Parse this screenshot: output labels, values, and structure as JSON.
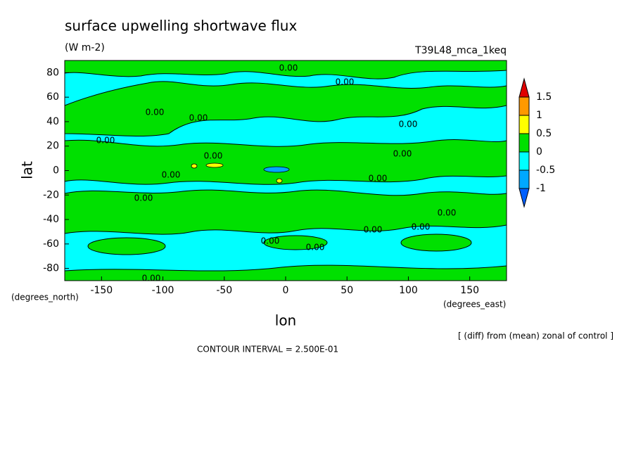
{
  "chart_data": {
    "type": "contour",
    "title": "surface upwelling shortwave flux",
    "units": "(W m-2)",
    "dataset": "T39L48_mca_1keq",
    "xlabel": "lon",
    "ylabel": "lat",
    "xunits": "(degrees_east)",
    "yunits": "(degrees_north)",
    "xlim": [
      -180,
      180
    ],
    "ylim": [
      -90,
      90
    ],
    "xticks": [
      -150,
      -100,
      -50,
      0,
      50,
      100,
      150
    ],
    "yticks": [
      -80,
      -60,
      -40,
      -20,
      0,
      20,
      40,
      60,
      80
    ],
    "levels": [
      -1,
      -0.5,
      0,
      0.5,
      1,
      1.5
    ],
    "level_colors": [
      "#0060ff",
      "#00a8ff",
      "#00ffff",
      "#00e000",
      "#ffff00",
      "#ff9900",
      "#e00000"
    ],
    "contour_labels": [
      {
        "value": 0,
        "label": "0.00"
      },
      {
        "value": 0,
        "label": "0.00"
      },
      {
        "value": 0,
        "label": "0.00"
      },
      {
        "value": 0,
        "label": "0.00"
      },
      {
        "value": 0,
        "label": "0.00"
      },
      {
        "value": 0,
        "label": "0.00"
      },
      {
        "value": 0,
        "label": "0.00"
      },
      {
        "value": 0,
        "label": "0.00"
      },
      {
        "value": 0,
        "label": "0.00"
      },
      {
        "value": 0,
        "label": "0.00"
      },
      {
        "value": 0,
        "label": "0.00"
      },
      {
        "value": 0,
        "label": "0.00"
      },
      {
        "value": 0,
        "label": "0.00"
      },
      {
        "value": 0,
        "label": "0.00"
      },
      {
        "value": 0,
        "label": "0.00"
      },
      {
        "value": 0,
        "label": "0.00"
      },
      {
        "value": 0,
        "label": "0.00"
      }
    ],
    "note": "[ (diff) from (mean) zonal of control ]",
    "contour_interval": "CONTOUR INTERVAL = 2.500E-01"
  }
}
